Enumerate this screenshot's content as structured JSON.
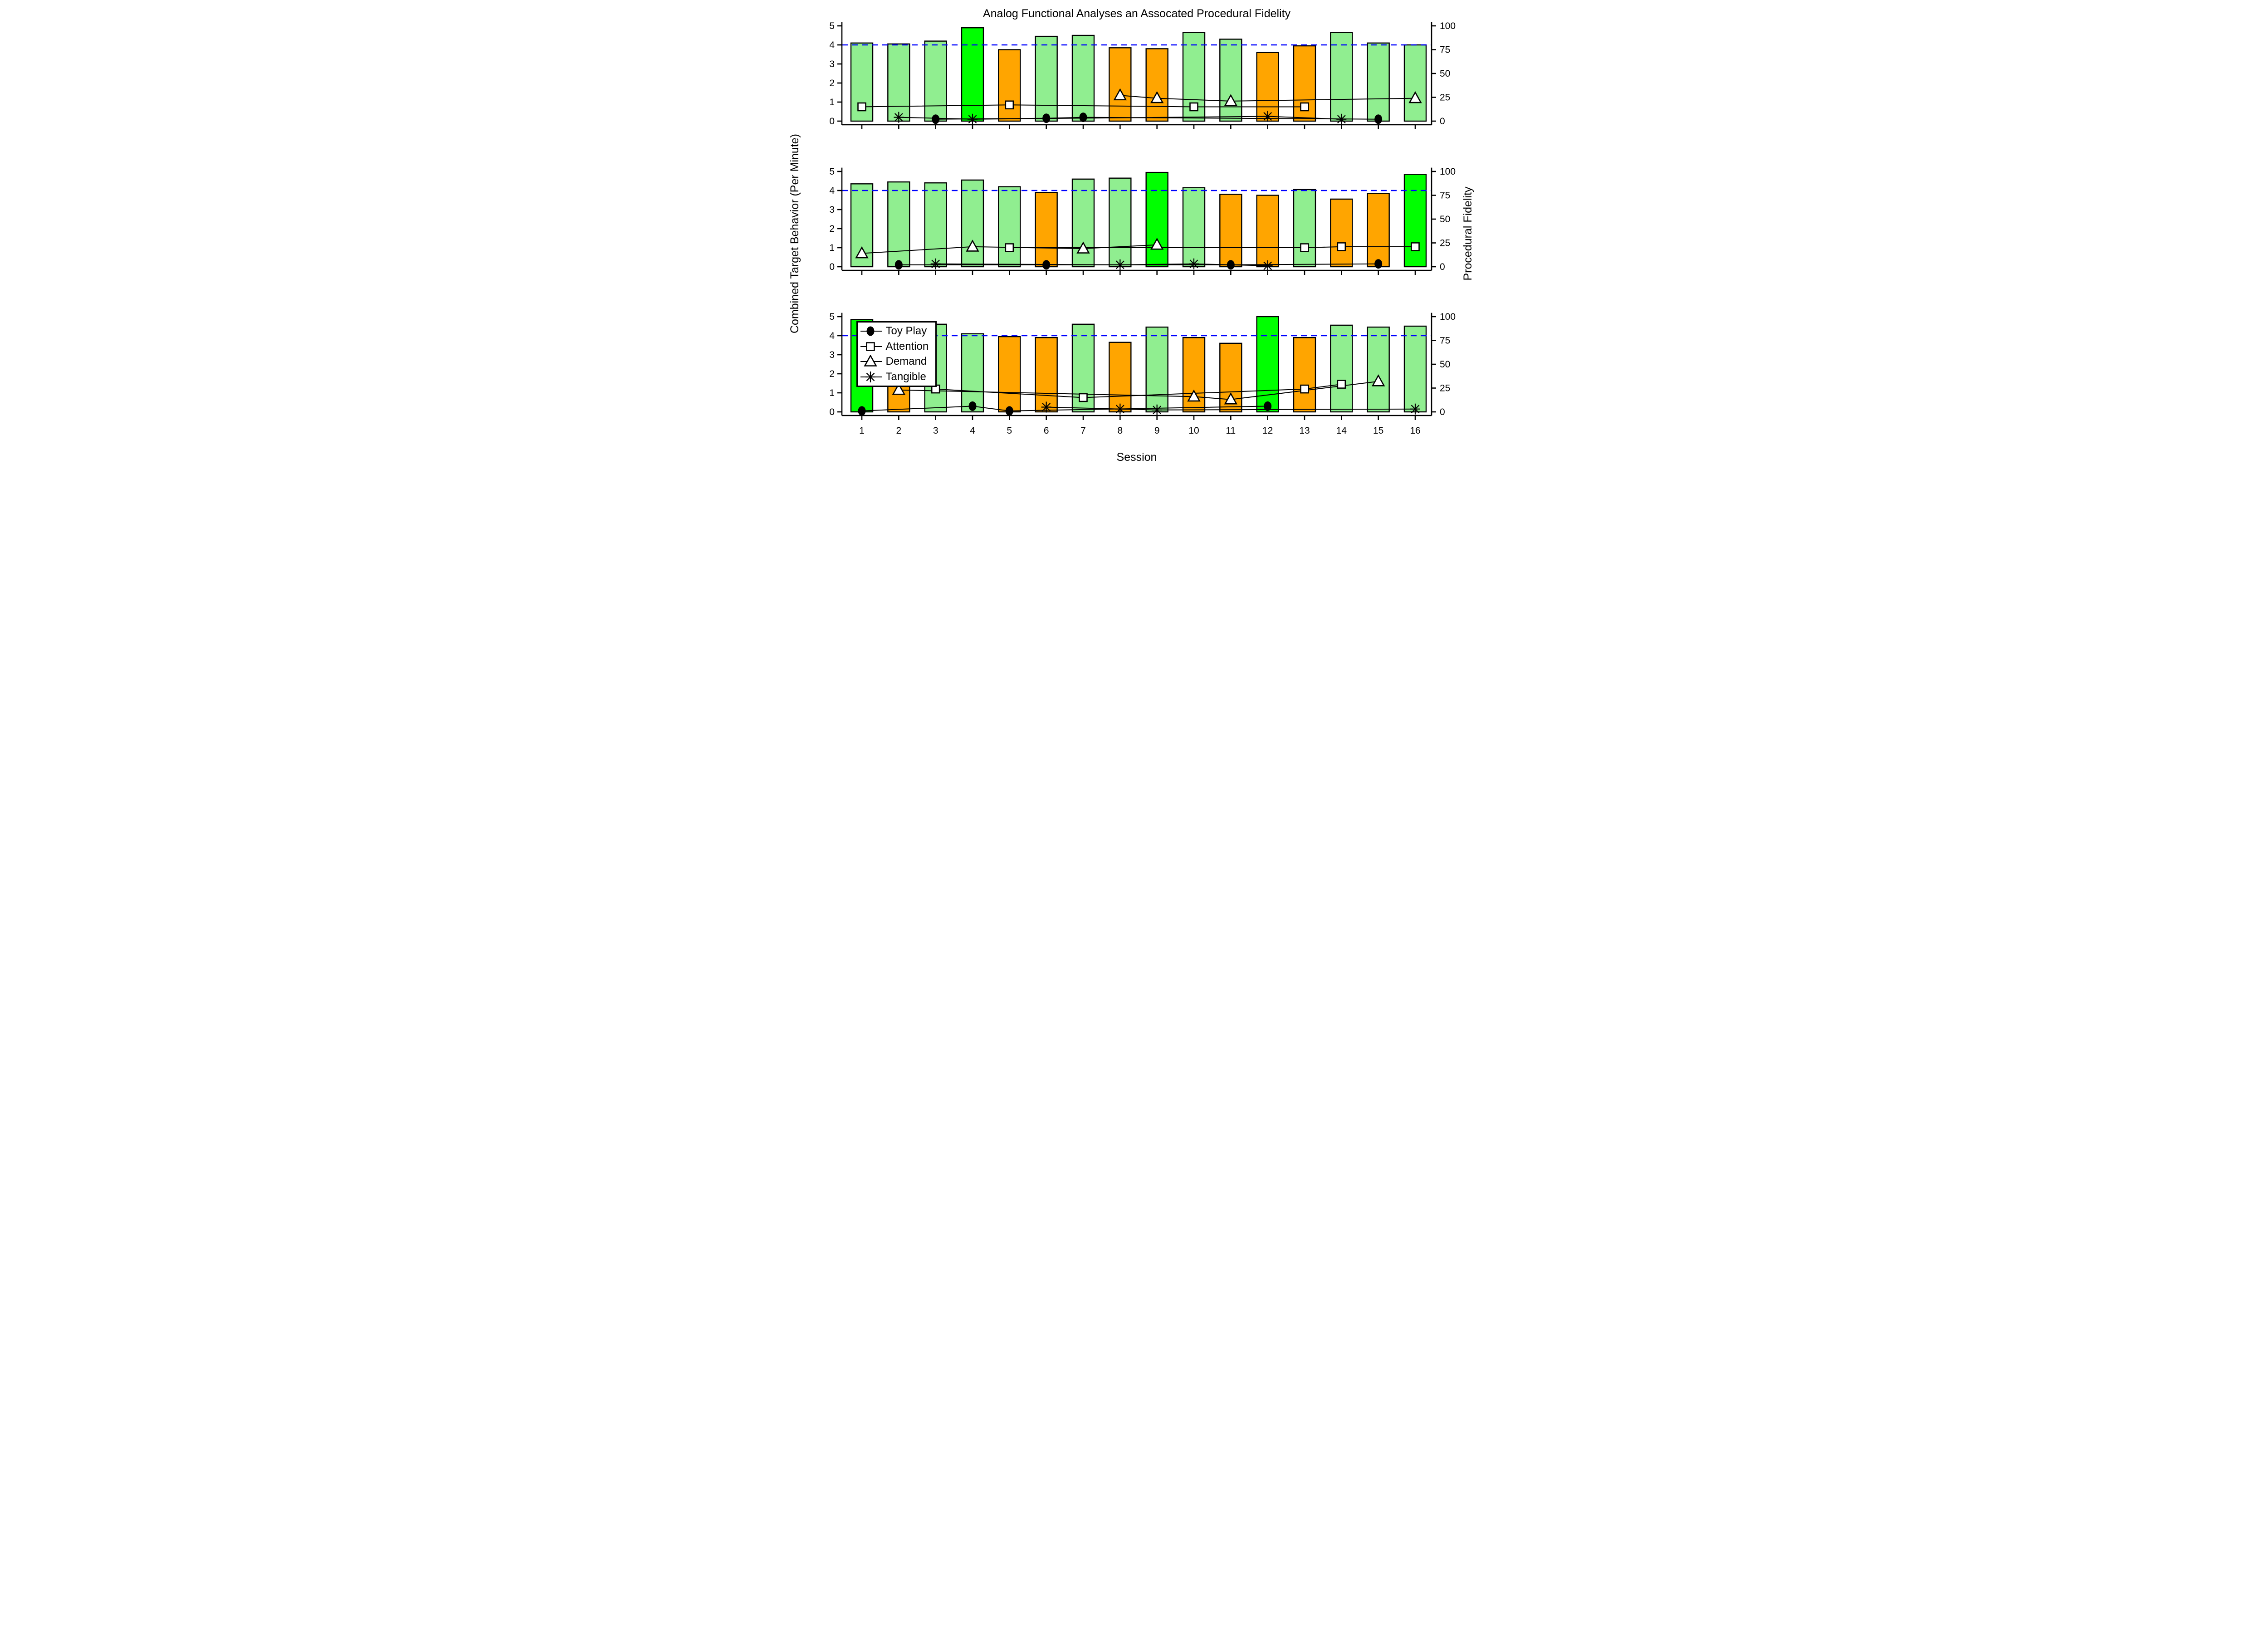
{
  "title": "Analog Functional Analyses an Assocated Procedural Fidelity",
  "axes": {
    "x_label": "Session",
    "y_left_label": "Combined Target Behavior (Per Minute)",
    "y_right_label": "Procedural Fidelity",
    "x_ticks": [
      1,
      2,
      3,
      4,
      5,
      6,
      7,
      8,
      9,
      10,
      11,
      12,
      13,
      14,
      15,
      16
    ],
    "y_left_ticks": [
      0,
      1,
      2,
      3,
      4,
      5
    ],
    "y_right_ticks": [
      0,
      25,
      50,
      75,
      100
    ],
    "y_left_range": [
      0,
      5
    ],
    "y_right_range": [
      0,
      100
    ]
  },
  "legend": {
    "entries": [
      {
        "label": "Toy Play",
        "marker": "filled-circle"
      },
      {
        "label": "Attention",
        "marker": "open-square"
      },
      {
        "label": "Demand",
        "marker": "open-triangle"
      },
      {
        "label": "Tangible",
        "marker": "asterisk"
      }
    ]
  },
  "palette": {
    "lightgreen": "#90EE90",
    "green": "#00FF00",
    "orange": "#FFA500",
    "threshold_blue": "#0000FF",
    "bar_border": "#000000"
  },
  "chart_data": {
    "type": "bar",
    "note_bars": "bar heights are Procedural Fidelity % (right axis); markers are behavior per minute (left axis)",
    "threshold_line": {
      "value_pct": 80,
      "color": "#0000FF",
      "style": "dashed"
    },
    "sessions": [
      1,
      2,
      3,
      4,
      5,
      6,
      7,
      8,
      9,
      10,
      11,
      12,
      13,
      14,
      15,
      16
    ],
    "panels": [
      {
        "id": "top",
        "bar_fidelity_pct": [
          82,
          81,
          84,
          98,
          75,
          89,
          90,
          77,
          76,
          93,
          86,
          72,
          79,
          93,
          82,
          80
        ],
        "bar_colors": [
          "lightgreen",
          "lightgreen",
          "lightgreen",
          "green",
          "orange",
          "lightgreen",
          "lightgreen",
          "orange",
          "orange",
          "lightgreen",
          "lightgreen",
          "orange",
          "orange",
          "lightgreen",
          "lightgreen",
          "lightgreen"
        ],
        "points": [
          {
            "session": 1,
            "series": "Attention",
            "value": 0.75
          },
          {
            "session": 2,
            "series": "Tangible",
            "value": 0.2
          },
          {
            "session": 3,
            "series": "Toy Play",
            "value": 0.1
          },
          {
            "session": 4,
            "series": "Tangible",
            "value": 0.1
          },
          {
            "session": 5,
            "series": "Attention",
            "value": 0.85
          },
          {
            "session": 6,
            "series": "Toy Play",
            "value": 0.15
          },
          {
            "session": 7,
            "series": "Toy Play",
            "value": 0.2
          },
          {
            "session": 8,
            "series": "Demand",
            "value": 1.35
          },
          {
            "session": 9,
            "series": "Demand",
            "value": 1.2
          },
          {
            "session": 10,
            "series": "Attention",
            "value": 0.75
          },
          {
            "session": 11,
            "series": "Demand",
            "value": 1.05
          },
          {
            "session": 12,
            "series": "Tangible",
            "value": 0.25
          },
          {
            "session": 13,
            "series": "Attention",
            "value": 0.75
          },
          {
            "session": 14,
            "series": "Tangible",
            "value": 0.1
          },
          {
            "session": 15,
            "series": "Toy Play",
            "value": 0.1
          },
          {
            "session": 16,
            "series": "Demand",
            "value": 1.2
          }
        ]
      },
      {
        "id": "middle",
        "bar_fidelity_pct": [
          87,
          89,
          88,
          91,
          84,
          78,
          92,
          93,
          99,
          83,
          76,
          75,
          81,
          71,
          77,
          97
        ],
        "bar_colors": [
          "lightgreen",
          "lightgreen",
          "lightgreen",
          "lightgreen",
          "lightgreen",
          "orange",
          "lightgreen",
          "lightgreen",
          "green",
          "lightgreen",
          "orange",
          "orange",
          "lightgreen",
          "orange",
          "orange",
          "green"
        ],
        "points": [
          {
            "session": 1,
            "series": "Demand",
            "value": 0.7
          },
          {
            "session": 2,
            "series": "Toy Play",
            "value": 0.1
          },
          {
            "session": 3,
            "series": "Tangible",
            "value": 0.15
          },
          {
            "session": 4,
            "series": "Demand",
            "value": 1.05
          },
          {
            "session": 5,
            "series": "Attention",
            "value": 1.0
          },
          {
            "session": 6,
            "series": "Toy Play",
            "value": 0.1
          },
          {
            "session": 7,
            "series": "Demand",
            "value": 0.95
          },
          {
            "session": 8,
            "series": "Tangible",
            "value": 0.1
          },
          {
            "session": 9,
            "series": "Demand",
            "value": 1.15
          },
          {
            "session": 10,
            "series": "Tangible",
            "value": 0.15
          },
          {
            "session": 11,
            "series": "Toy Play",
            "value": 0.1
          },
          {
            "session": 12,
            "series": "Tangible",
            "value": 0.05
          },
          {
            "session": 13,
            "series": "Attention",
            "value": 1.0
          },
          {
            "session": 14,
            "series": "Attention",
            "value": 1.05
          },
          {
            "session": 15,
            "series": "Toy Play",
            "value": 0.15
          },
          {
            "session": 16,
            "series": "Attention",
            "value": 1.05
          }
        ]
      },
      {
        "id": "bottom",
        "bar_fidelity_pct": [
          97,
          78,
          92,
          82,
          79,
          78,
          92,
          73,
          89,
          78,
          72,
          100,
          78,
          91,
          89,
          90
        ],
        "bar_colors": [
          "green",
          "orange",
          "lightgreen",
          "lightgreen",
          "orange",
          "orange",
          "lightgreen",
          "orange",
          "lightgreen",
          "orange",
          "orange",
          "green",
          "orange",
          "lightgreen",
          "lightgreen",
          "lightgreen"
        ],
        "points": [
          {
            "session": 1,
            "series": "Toy Play",
            "value": 0.05
          },
          {
            "session": 2,
            "series": "Demand",
            "value": 1.15
          },
          {
            "session": 3,
            "series": "Attention",
            "value": 1.2
          },
          {
            "session": 4,
            "series": "Toy Play",
            "value": 0.3
          },
          {
            "session": 5,
            "series": "Toy Play",
            "value": 0.05
          },
          {
            "session": 6,
            "series": "Tangible",
            "value": 0.25
          },
          {
            "session": 7,
            "series": "Attention",
            "value": 0.75
          },
          {
            "session": 8,
            "series": "Tangible",
            "value": 0.15
          },
          {
            "session": 9,
            "series": "Tangible",
            "value": 0.1
          },
          {
            "session": 10,
            "series": "Demand",
            "value": 0.8
          },
          {
            "session": 11,
            "series": "Demand",
            "value": 0.65
          },
          {
            "session": 12,
            "series": "Toy Play",
            "value": 0.3
          },
          {
            "session": 13,
            "series": "Attention",
            "value": 1.2
          },
          {
            "session": 14,
            "series": "Attention",
            "value": 1.45
          },
          {
            "session": 15,
            "series": "Demand",
            "value": 1.6
          },
          {
            "session": 16,
            "series": "Tangible",
            "value": 0.15
          }
        ]
      }
    ]
  }
}
